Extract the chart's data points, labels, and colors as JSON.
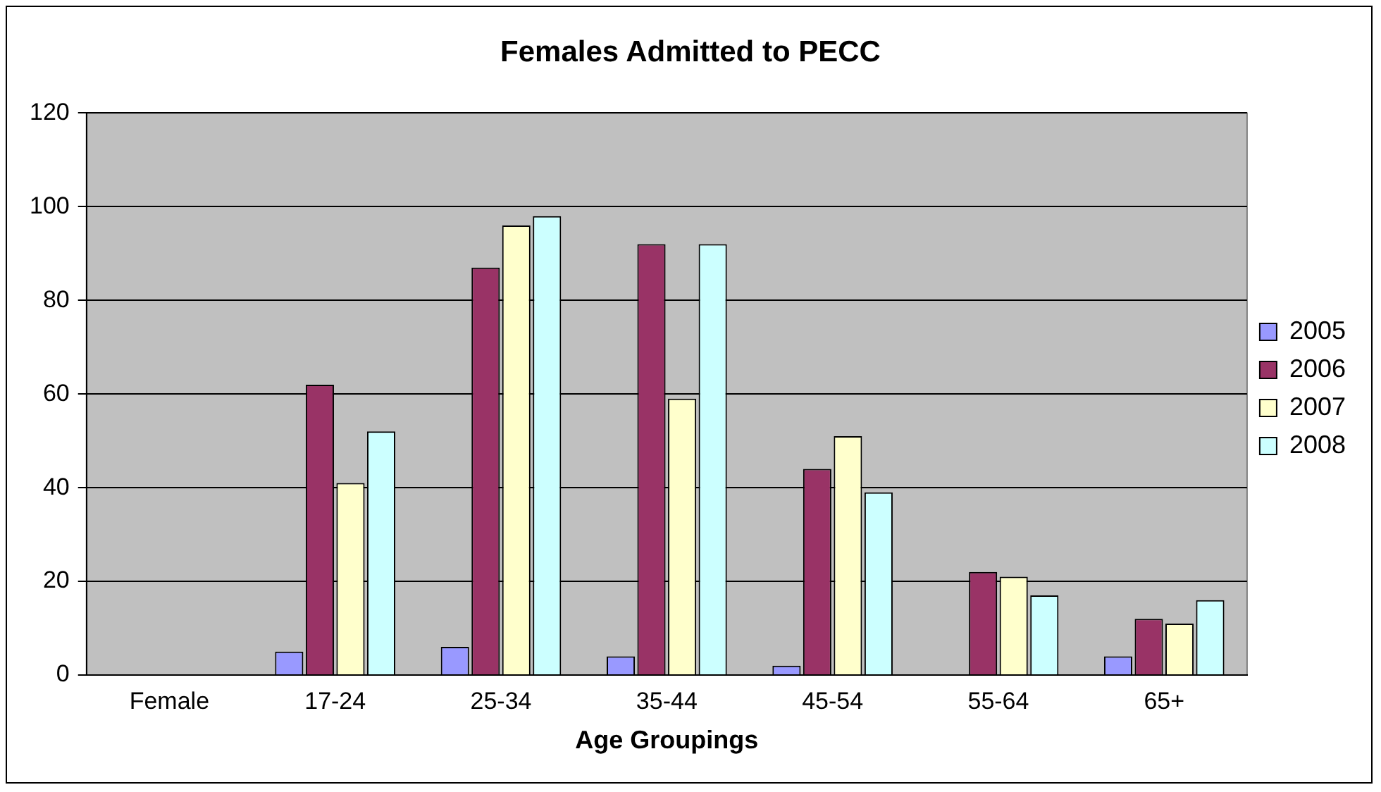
{
  "chart_data": {
    "type": "bar",
    "title": "Females Admitted to PECC",
    "xlabel": "Age Groupings",
    "categories": [
      "Female",
      "17-24",
      "25-34",
      "35-44",
      "45-54",
      "55-64",
      "65+"
    ],
    "series": [
      {
        "name": "2005",
        "color": "#9999ff",
        "values": [
          null,
          5,
          6,
          4,
          2,
          null,
          4
        ]
      },
      {
        "name": "2006",
        "color": "#993366",
        "values": [
          null,
          62,
          87,
          92,
          44,
          22,
          12
        ]
      },
      {
        "name": "2007",
        "color": "#ffffcc",
        "values": [
          null,
          41,
          96,
          59,
          51,
          21,
          11
        ]
      },
      {
        "name": "2008",
        "color": "#ccffff",
        "values": [
          null,
          52,
          98,
          92,
          39,
          17,
          16
        ]
      }
    ],
    "ylim": [
      0,
      120
    ],
    "yticks": [
      0,
      20,
      40,
      60,
      80,
      100,
      120
    ],
    "grid": "y",
    "legend": "right"
  }
}
